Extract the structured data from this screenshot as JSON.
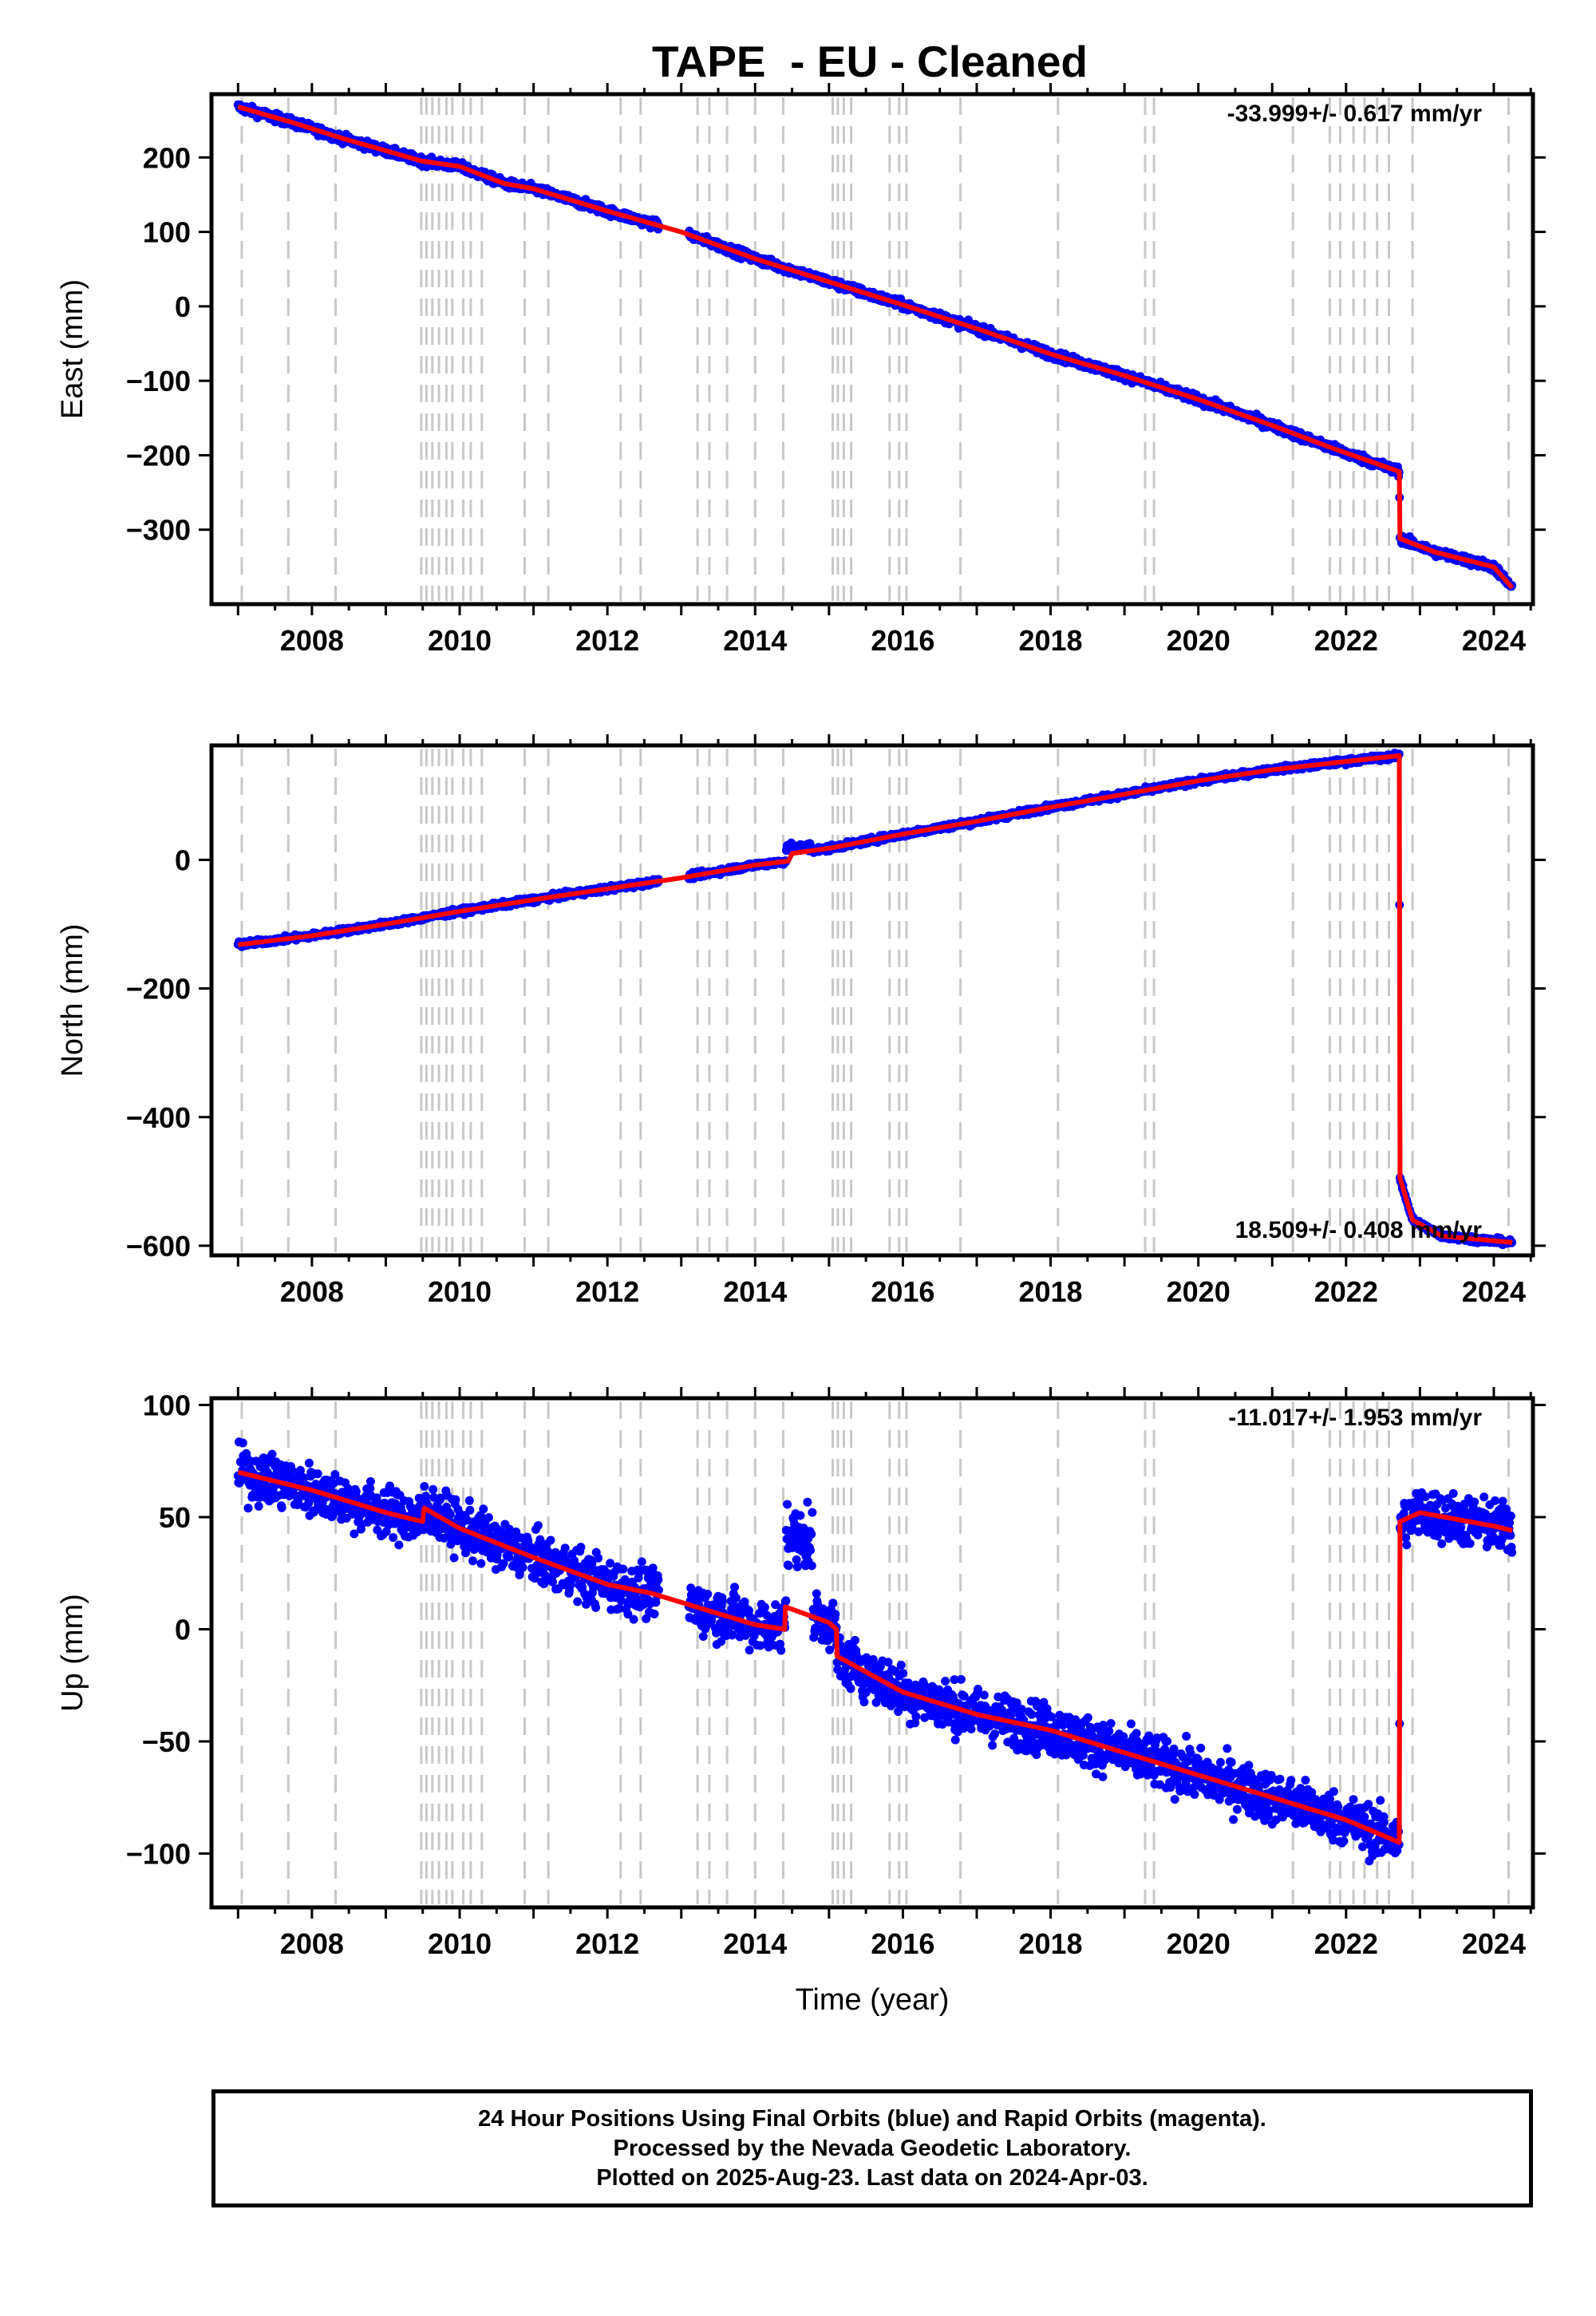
{
  "title": "TAPE  - EU - Cleaned",
  "xlabel": "Time (year)",
  "caption": {
    "line1": "24 Hour Positions Using Final Orbits (blue) and Rapid Orbits (magenta).",
    "line2": "Processed by the Nevada Geodetic Laboratory.",
    "line3": "Plotted on 2025-Aug-23. Last data on 2024-Apr-03."
  },
  "colors": {
    "data": "#0000ff",
    "model": "#ff0000",
    "steps": "#c8c8c8",
    "frame": "#000000"
  },
  "chart_data": [
    {
      "type": "scatter",
      "name": "east",
      "ylabel": "East (mm)",
      "rate_text": "-33.999+/- 0.617 mm/yr",
      "xlim": [
        2006.64,
        2024.53
      ],
      "ylim": [
        -400,
        285
      ],
      "yticks": [
        200,
        100,
        0,
        -100,
        -200,
        -300
      ],
      "ytick_labels": [
        "200",
        "100",
        "0",
        "−100",
        "−200",
        "−300"
      ],
      "xticks": [
        2008,
        2010,
        2012,
        2014,
        2016,
        2018,
        2020,
        2022,
        2024
      ],
      "model_points": [
        [
          2007.0,
          268
        ],
        [
          2007.8,
          245
        ],
        [
          2008.4,
          226
        ],
        [
          2009.5,
          195
        ],
        [
          2010.0,
          188
        ],
        [
          2010.6,
          165
        ],
        [
          2011.0,
          158
        ],
        [
          2012.0,
          128
        ],
        [
          2013.0,
          100
        ],
        [
          2014.0,
          64
        ],
        [
          2015.0,
          33
        ],
        [
          2016.0,
          2
        ],
        [
          2017.0,
          -30
        ],
        [
          2018.0,
          -64
        ],
        [
          2019.0,
          -93
        ],
        [
          2020.0,
          -125
        ],
        [
          2021.0,
          -160
        ],
        [
          2021.8,
          -190
        ],
        [
          2022.72,
          -222
        ],
        [
          2022.73,
          -312
        ],
        [
          2023.2,
          -330
        ],
        [
          2024.0,
          -350
        ],
        [
          2024.25,
          -378
        ]
      ],
      "noise_mm": 4
    },
    {
      "type": "scatter",
      "name": "north",
      "ylabel": "North (mm)",
      "rate_text": "18.509+/- 0.408 mm/yr",
      "xlim": [
        2006.64,
        2024.53
      ],
      "ylim": [
        -615,
        178
      ],
      "yticks": [
        0,
        -200,
        -400,
        -600
      ],
      "ytick_labels": [
        "0",
        "−200",
        "−400",
        "−600"
      ],
      "xticks": [
        2008,
        2010,
        2012,
        2014,
        2016,
        2018,
        2020,
        2022,
        2024
      ],
      "model_points": [
        [
          2007.0,
          -132
        ],
        [
          2008.0,
          -118
        ],
        [
          2009.0,
          -100
        ],
        [
          2010.0,
          -80
        ],
        [
          2011.0,
          -62
        ],
        [
          2012.0,
          -45
        ],
        [
          2013.0,
          -28
        ],
        [
          2014.0,
          -8
        ],
        [
          2014.45,
          -2
        ],
        [
          2014.5,
          10
        ],
        [
          2015.0,
          18
        ],
        [
          2016.0,
          40
        ],
        [
          2017.0,
          60
        ],
        [
          2018.0,
          82
        ],
        [
          2019.0,
          102
        ],
        [
          2020.0,
          123
        ],
        [
          2021.0,
          140
        ],
        [
          2022.0,
          153
        ],
        [
          2022.72,
          162
        ],
        [
          2022.73,
          -495
        ],
        [
          2022.9,
          -560
        ],
        [
          2023.3,
          -585
        ],
        [
          2024.25,
          -595
        ]
      ],
      "noise_mm": 3
    },
    {
      "type": "scatter",
      "name": "up",
      "ylabel": "Up (mm)",
      "rate_text": "-11.017+/- 1.953 mm/yr",
      "xlim": [
        2006.64,
        2024.53
      ],
      "ylim": [
        -124,
        103
      ],
      "yticks": [
        100,
        50,
        0,
        -50,
        -100
      ],
      "ytick_labels": [
        "100",
        "50",
        "0",
        "−50",
        "−100"
      ],
      "xticks": [
        2008,
        2010,
        2012,
        2014,
        2016,
        2018,
        2020,
        2022,
        2024
      ],
      "model_points": [
        [
          2007.0,
          70
        ],
        [
          2008.0,
          62
        ],
        [
          2009.0,
          52
        ],
        [
          2009.5,
          48
        ],
        [
          2009.52,
          54
        ],
        [
          2010.0,
          45
        ],
        [
          2011.0,
          32
        ],
        [
          2012.0,
          20
        ],
        [
          2012.6,
          16
        ],
        [
          2013.0,
          12
        ],
        [
          2014.0,
          2
        ],
        [
          2014.4,
          0
        ],
        [
          2014.41,
          10
        ],
        [
          2015.0,
          3
        ],
        [
          2015.1,
          0
        ],
        [
          2015.11,
          -12
        ],
        [
          2016.0,
          -28
        ],
        [
          2017.0,
          -38
        ],
        [
          2018.0,
          -45
        ],
        [
          2019.0,
          -55
        ],
        [
          2020.0,
          -65
        ],
        [
          2021.0,
          -75
        ],
        [
          2022.0,
          -85
        ],
        [
          2022.72,
          -95
        ],
        [
          2022.73,
          48
        ],
        [
          2023.0,
          52
        ],
        [
          2024.0,
          46
        ],
        [
          2024.25,
          44
        ]
      ],
      "noise_mm": 8
    }
  ],
  "step_epochs": [
    2007.05,
    2007.68,
    2008.32,
    2009.48,
    2009.55,
    2009.63,
    2009.72,
    2009.82,
    2009.9,
    2010.05,
    2010.15,
    2010.3,
    2010.88,
    2011.2,
    2012.18,
    2012.45,
    2013.22,
    2013.38,
    2013.62,
    2014.0,
    2014.38,
    2015.05,
    2015.12,
    2015.2,
    2015.3,
    2015.82,
    2015.95,
    2016.05,
    2016.78,
    2018.1,
    2019.28,
    2019.4,
    2021.28,
    2021.78,
    2021.92,
    2022.1,
    2022.25,
    2022.42,
    2022.58,
    2022.9,
    2024.2
  ]
}
